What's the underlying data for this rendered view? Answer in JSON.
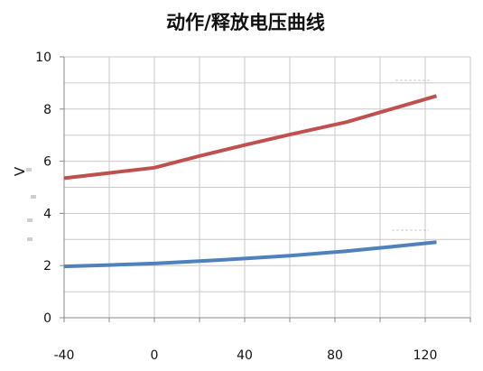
{
  "chart_data": {
    "type": "line",
    "title": "动作/释放电压曲线",
    "xlabel": "",
    "ylabel": "V",
    "xlim": [
      -40,
      140
    ],
    "ylim": [
      0,
      10
    ],
    "x_ticks": [
      "-40",
      "0",
      "40",
      "80",
      "120"
    ],
    "y_ticks": [
      "0",
      "2",
      "4",
      "6",
      "8",
      "10"
    ],
    "x_grid_step": 20,
    "y_grid_step": 1,
    "grid": true,
    "legend": "none",
    "series": [
      {
        "color": "#c0504d",
        "x": [
          -40,
          -20,
          0,
          20,
          40,
          60,
          85,
          105,
          125
        ],
        "y": [
          5.35,
          5.55,
          5.75,
          6.2,
          6.62,
          7.02,
          7.5,
          8.0,
          8.5
        ]
      },
      {
        "color": "#4f81bd",
        "x": [
          -40,
          -20,
          0,
          20,
          40,
          60,
          85,
          105,
          125
        ],
        "y": [
          1.97,
          2.02,
          2.08,
          2.17,
          2.27,
          2.38,
          2.55,
          2.72,
          2.9
        ]
      }
    ]
  }
}
